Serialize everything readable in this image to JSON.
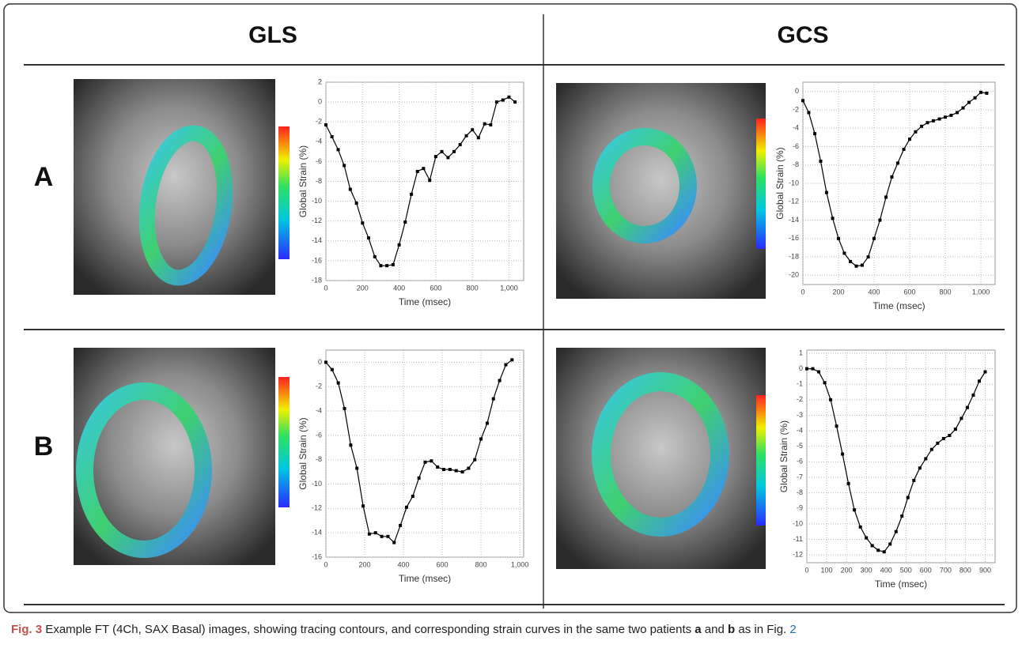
{
  "columns": [
    "GLS",
    "GCS"
  ],
  "rows": [
    "A",
    "B"
  ],
  "caption": [
    "Fig. 3",
    " Example FT (4Ch, SAX Basal) images, showing tracing contours, and corresponding strain curves in the same two patients ",
    "a",
    " and ",
    "b",
    " as in Fig. ",
    "2"
  ],
  "chart_data": [
    {
      "type": "line",
      "color": "#000000",
      "xlabel": "Time (msec)",
      "ylabel": "Global Strain (%)",
      "grid": true,
      "x": [
        0,
        33,
        67,
        100,
        133,
        167,
        200,
        233,
        267,
        300,
        333,
        367,
        400,
        433,
        467,
        500,
        533,
        567,
        600,
        633,
        667,
        700,
        733,
        767,
        800,
        833,
        867,
        900,
        933,
        967,
        1000,
        1033
      ],
      "values": [
        -2.3,
        -3.5,
        -4.8,
        -6.4,
        -8.8,
        -10.2,
        -12.2,
        -13.7,
        -15.6,
        -16.5,
        -16.5,
        -16.4,
        -14.4,
        -12.1,
        -9.3,
        -7,
        -6.7,
        -7.9,
        -5.5,
        -5,
        -5.6,
        -5,
        -4.3,
        -3.4,
        -2.8,
        -3.6,
        -2.2,
        -2.3,
        0,
        0.2,
        0.5,
        0
      ],
      "xlim": [
        0,
        1080
      ],
      "xticks": [
        0,
        200,
        400,
        600,
        800,
        {
          "value": 1000,
          "label": "1,000"
        }
      ],
      "ylim": [
        -18,
        2
      ],
      "yticks": [
        -18,
        -16,
        -14,
        -12,
        -10,
        -8,
        -6,
        -4,
        -2,
        0,
        2
      ]
    },
    {
      "type": "line",
      "color": "#000000",
      "xlabel": "Time (msec)",
      "ylabel": "Global Strain (%)",
      "grid": true,
      "x": [
        0,
        33,
        67,
        100,
        133,
        167,
        200,
        233,
        267,
        300,
        333,
        367,
        400,
        433,
        467,
        500,
        533,
        567,
        600,
        633,
        667,
        700,
        733,
        767,
        800,
        833,
        867,
        900,
        933,
        967,
        1000,
        1033
      ],
      "values": [
        -1,
        -2.3,
        -4.6,
        -7.6,
        -11,
        -13.8,
        -16,
        -17.6,
        -18.5,
        -19,
        -18.9,
        -18,
        -16,
        -14,
        -11.5,
        -9.3,
        -7.8,
        -6.3,
        -5.2,
        -4.4,
        -3.8,
        -3.4,
        -3.2,
        -3,
        -2.8,
        -2.6,
        -2.3,
        -1.8,
        -1.2,
        -0.7,
        -0.1,
        -0.2
      ],
      "xlim": [
        0,
        1080
      ],
      "xticks": [
        0,
        200,
        400,
        600,
        800,
        {
          "value": 1000,
          "label": "1,000"
        }
      ],
      "ylim": [
        -21,
        1
      ],
      "yticks": [
        -20,
        -18,
        -16,
        -14,
        -12,
        -10,
        -8,
        -6,
        -4,
        -2,
        0
      ]
    },
    {
      "type": "line",
      "color": "#000000",
      "xlabel": "Time (msec)",
      "ylabel": "Global Strain (%)",
      "grid": true,
      "x": [
        0,
        32,
        64,
        96,
        128,
        160,
        192,
        224,
        256,
        288,
        320,
        352,
        384,
        416,
        448,
        480,
        512,
        544,
        576,
        608,
        640,
        672,
        704,
        736,
        768,
        800,
        832,
        864,
        896,
        928,
        960
      ],
      "values": [
        0,
        -0.6,
        -1.7,
        -3.8,
        -6.8,
        -8.7,
        -11.8,
        -14.1,
        -14,
        -14.3,
        -14.3,
        -14.8,
        -13.4,
        -11.9,
        -11,
        -9.5,
        -8.2,
        -8.1,
        -8.6,
        -8.8,
        -8.8,
        -8.9,
        -9,
        -8.7,
        -8,
        -6.3,
        -5,
        -3,
        -1.5,
        -0.2,
        0.2
      ],
      "xlim": [
        0,
        1020
      ],
      "xticks": [
        0,
        200,
        400,
        600,
        800,
        {
          "value": 1000,
          "label": "1,000"
        }
      ],
      "ylim": [
        -16,
        1
      ],
      "yticks": [
        -16,
        -14,
        -12,
        -10,
        -8,
        -6,
        -4,
        -2,
        0
      ]
    },
    {
      "type": "line",
      "color": "#000000",
      "xlabel": "Time (msec)",
      "ylabel": "Global Strain (%)",
      "grid": true,
      "x": [
        0,
        30,
        60,
        90,
        120,
        150,
        180,
        210,
        240,
        270,
        300,
        330,
        360,
        390,
        420,
        450,
        480,
        510,
        540,
        570,
        600,
        630,
        660,
        690,
        720,
        750,
        780,
        810,
        840,
        870,
        900
      ],
      "values": [
        0,
        0,
        -0.2,
        -0.9,
        -2,
        -3.7,
        -5.5,
        -7.4,
        -9.1,
        -10.2,
        -10.9,
        -11.4,
        -11.7,
        -11.8,
        -11.3,
        -10.5,
        -9.5,
        -8.3,
        -7.2,
        -6.4,
        -5.8,
        -5.2,
        -4.8,
        -4.5,
        -4.3,
        -3.9,
        -3.2,
        -2.5,
        -1.7,
        -0.8,
        -0.2
      ],
      "xlim": [
        0,
        950
      ],
      "xticks": [
        0,
        100,
        200,
        300,
        400,
        500,
        600,
        700,
        800,
        900
      ],
      "ylim": [
        -12.5,
        1.2
      ],
      "yticks": [
        -12,
        -11,
        -10,
        -9,
        -8,
        -7,
        -6,
        -5,
        -4,
        -3,
        -2,
        -1,
        0,
        1
      ]
    }
  ]
}
